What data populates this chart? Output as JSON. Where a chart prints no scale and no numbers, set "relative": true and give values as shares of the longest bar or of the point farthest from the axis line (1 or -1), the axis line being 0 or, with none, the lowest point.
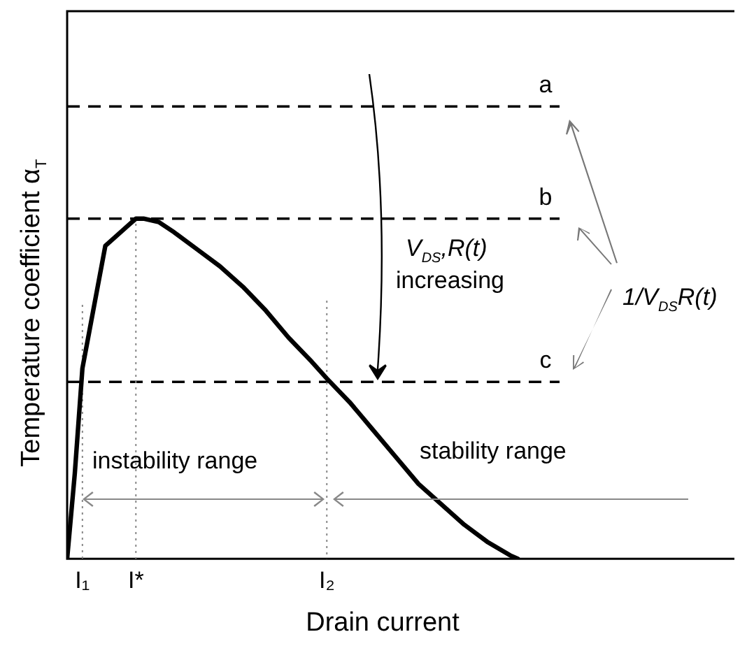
{
  "chart_data": {
    "type": "line",
    "xlabel": "Drain current",
    "ylabel": "Temperature coefficient α$_{T}$",
    "relative": true,
    "marker": "none",
    "tick_labels": "x",
    "color": "#000000",
    "categories": [
      null,
      null,
      "I₁",
      null,
      null,
      null,
      null,
      null,
      null,
      "I*",
      null,
      null,
      null,
      null,
      null,
      null,
      null,
      null,
      null,
      null,
      null,
      null,
      null,
      null,
      null,
      null,
      null,
      null,
      null,
      null,
      null,
      null,
      null,
      null,
      "I₂",
      null,
      null,
      null,
      null,
      null,
      null,
      null,
      null,
      null,
      null,
      null,
      null,
      null,
      null,
      null,
      null,
      null,
      null,
      null,
      null,
      null,
      null,
      null,
      null,
      null,
      null,
      null,
      null,
      null,
      null,
      null,
      null,
      null,
      null,
      null,
      null,
      null,
      null,
      null,
      null,
      null,
      null,
      null,
      null,
      null,
      null,
      null,
      null,
      null,
      null,
      null,
      null,
      null
    ],
    "values": [
      0,
      0.25,
      0.56,
      0.68,
      0.8,
      0.92,
      0.94,
      0.96,
      0.98,
      1.0,
      1.0,
      null,
      0.99,
      null,
      0.96,
      null,
      null,
      0.91,
      null,
      null,
      0.86,
      null,
      null,
      0.8,
      null,
      null,
      0.73,
      null,
      null,
      0.65,
      null,
      null,
      0.58,
      null,
      0.53,
      null,
      null,
      0.46,
      null,
      null,
      0.38,
      null,
      null,
      0.3,
      null,
      null,
      0.22,
      null,
      null,
      0.16,
      null,
      null,
      0.1,
      null,
      null,
      0.05,
      null,
      null,
      0.01,
      0,
      null,
      null,
      null,
      null,
      null,
      null,
      null,
      null,
      null,
      null,
      null,
      null,
      null,
      null,
      null,
      null,
      null,
      null,
      null,
      null,
      null,
      null,
      null,
      null,
      null,
      null,
      null,
      null
    ],
    "ref_lines": [
      {
        "axis": "y",
        "value": 1.33,
        "label": "a",
        "line_style": "dashed"
      },
      {
        "axis": "y",
        "value": 1.0,
        "label": "b",
        "line_style": "dashed"
      },
      {
        "axis": "y",
        "value": 0.52,
        "label": "c",
        "line_style": "dashed"
      },
      {
        "axis": "x",
        "value": "I₁",
        "line_style": "dotted",
        "color": "#888888"
      },
      {
        "axis": "x",
        "value": "I*",
        "line_style": "dotted",
        "color": "#888888"
      },
      {
        "axis": "x",
        "value": "I₂",
        "line_style": "dotted",
        "color": "#888888"
      }
    ],
    "annotations": [
      "V$_{DS}$,R(t)",
      "increasing",
      "1/V$_{DS}$R(t)",
      "instability range",
      "stability range"
    ]
  }
}
